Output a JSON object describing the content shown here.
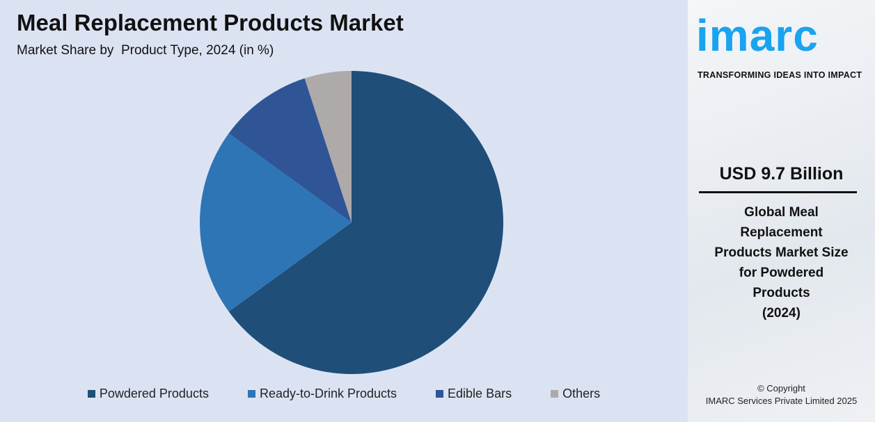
{
  "chart_data": {
    "type": "pie",
    "title": "Meal Replacement Products Market",
    "subtitle": "Market Share by  Product Type, 2024 (in %)",
    "categories": [
      "Powdered Products",
      "Ready-to-Drink Products",
      "Edible Bars",
      "Others"
    ],
    "values": [
      65,
      20,
      10,
      5
    ],
    "colors": [
      "#1f4e79",
      "#2e75b6",
      "#2f5597",
      "#aeaaaa"
    ],
    "start_angle": "12 o'clock, clockwise",
    "legend_position": "bottom"
  },
  "brand": {
    "logo": "imarc",
    "tagline": "TRANSFORMING IDEAS INTO IMPACT",
    "color": "#1aa3ef"
  },
  "highlight": {
    "value": "USD 9.7 Billion",
    "description": "Global Meal\nReplacement\nProducts Market Size\nfor Powdered\nProducts\n(2024)"
  },
  "copyright": {
    "line1": "© Copyright",
    "line2": "IMARC Services Private Limited 2025"
  }
}
